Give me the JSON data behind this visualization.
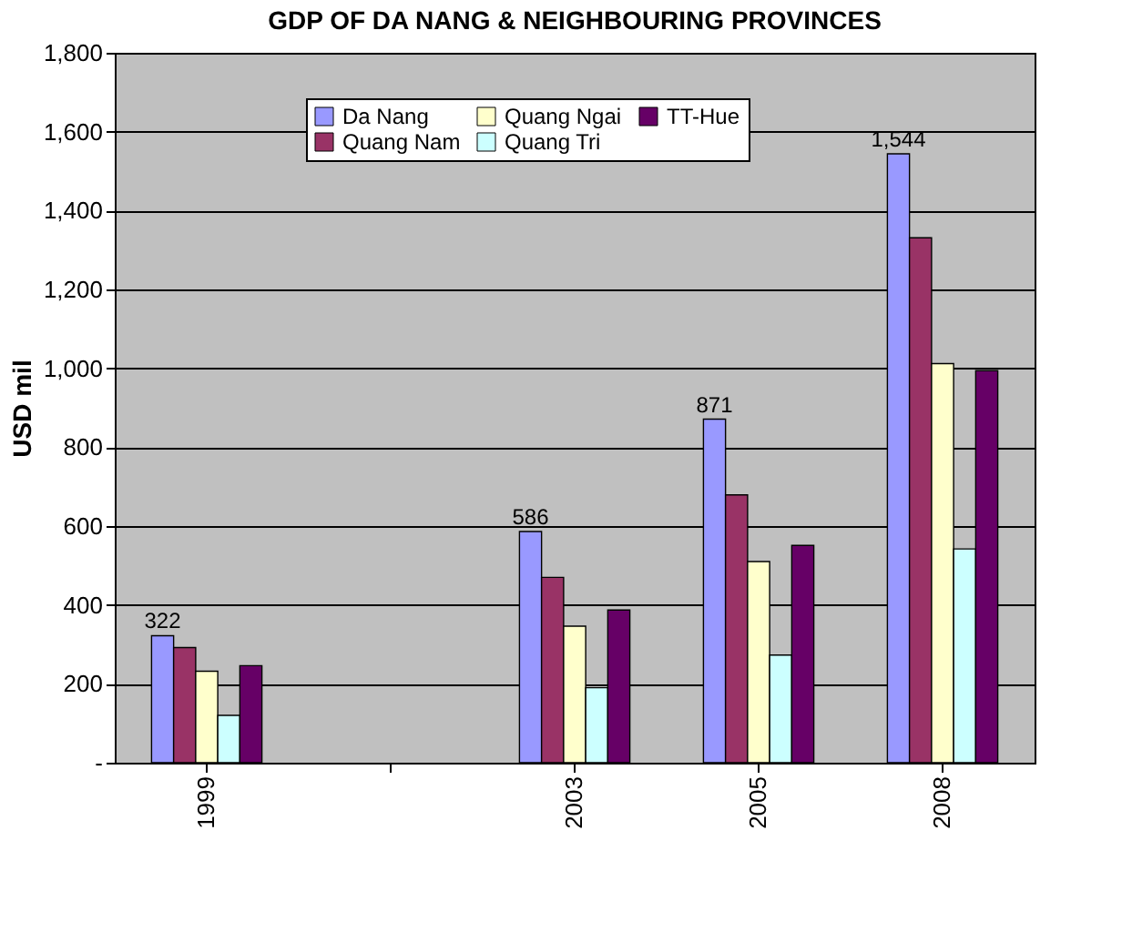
{
  "chart_data": {
    "type": "bar",
    "title": "GDP OF DA NANG & NEIGHBOURING PROVINCES",
    "ylabel": "USD mil",
    "categories": [
      "1999",
      null,
      "2003",
      "2005",
      "2008"
    ],
    "series": [
      {
        "name": "Da Nang",
        "color": "#9999ff",
        "values": [
          322,
          null,
          586,
          871,
          1544
        ],
        "value_labels": [
          "322",
          null,
          "586",
          "871",
          "1,544"
        ]
      },
      {
        "name": "Quang Nam",
        "color": "#993366",
        "values": [
          292,
          null,
          470,
          679,
          1331
        ]
      },
      {
        "name": "Quang Ngai",
        "color": "#ffffcc",
        "values": [
          232,
          null,
          346,
          510,
          1012
        ]
      },
      {
        "name": "Quang Tri",
        "color": "#ccffff",
        "values": [
          120,
          null,
          190,
          273,
          542
        ]
      },
      {
        "name": "TT-Hue",
        "color": "#660066",
        "values": [
          246,
          null,
          387,
          551,
          994
        ]
      }
    ],
    "ylim": [
      0,
      1800
    ],
    "yticks": [
      {
        "value": 0,
        "label": "-"
      },
      {
        "value": 200,
        "label": "200"
      },
      {
        "value": 400,
        "label": "400"
      },
      {
        "value": 600,
        "label": "600"
      },
      {
        "value": 800,
        "label": "800"
      },
      {
        "value": 1000,
        "label": "1,000"
      },
      {
        "value": 1200,
        "label": "1,200"
      },
      {
        "value": 1400,
        "label": "1,400"
      },
      {
        "value": 1600,
        "label": "1,600"
      },
      {
        "value": 1800,
        "label": "1,800"
      }
    ],
    "grid": "y",
    "legend": "top"
  }
}
